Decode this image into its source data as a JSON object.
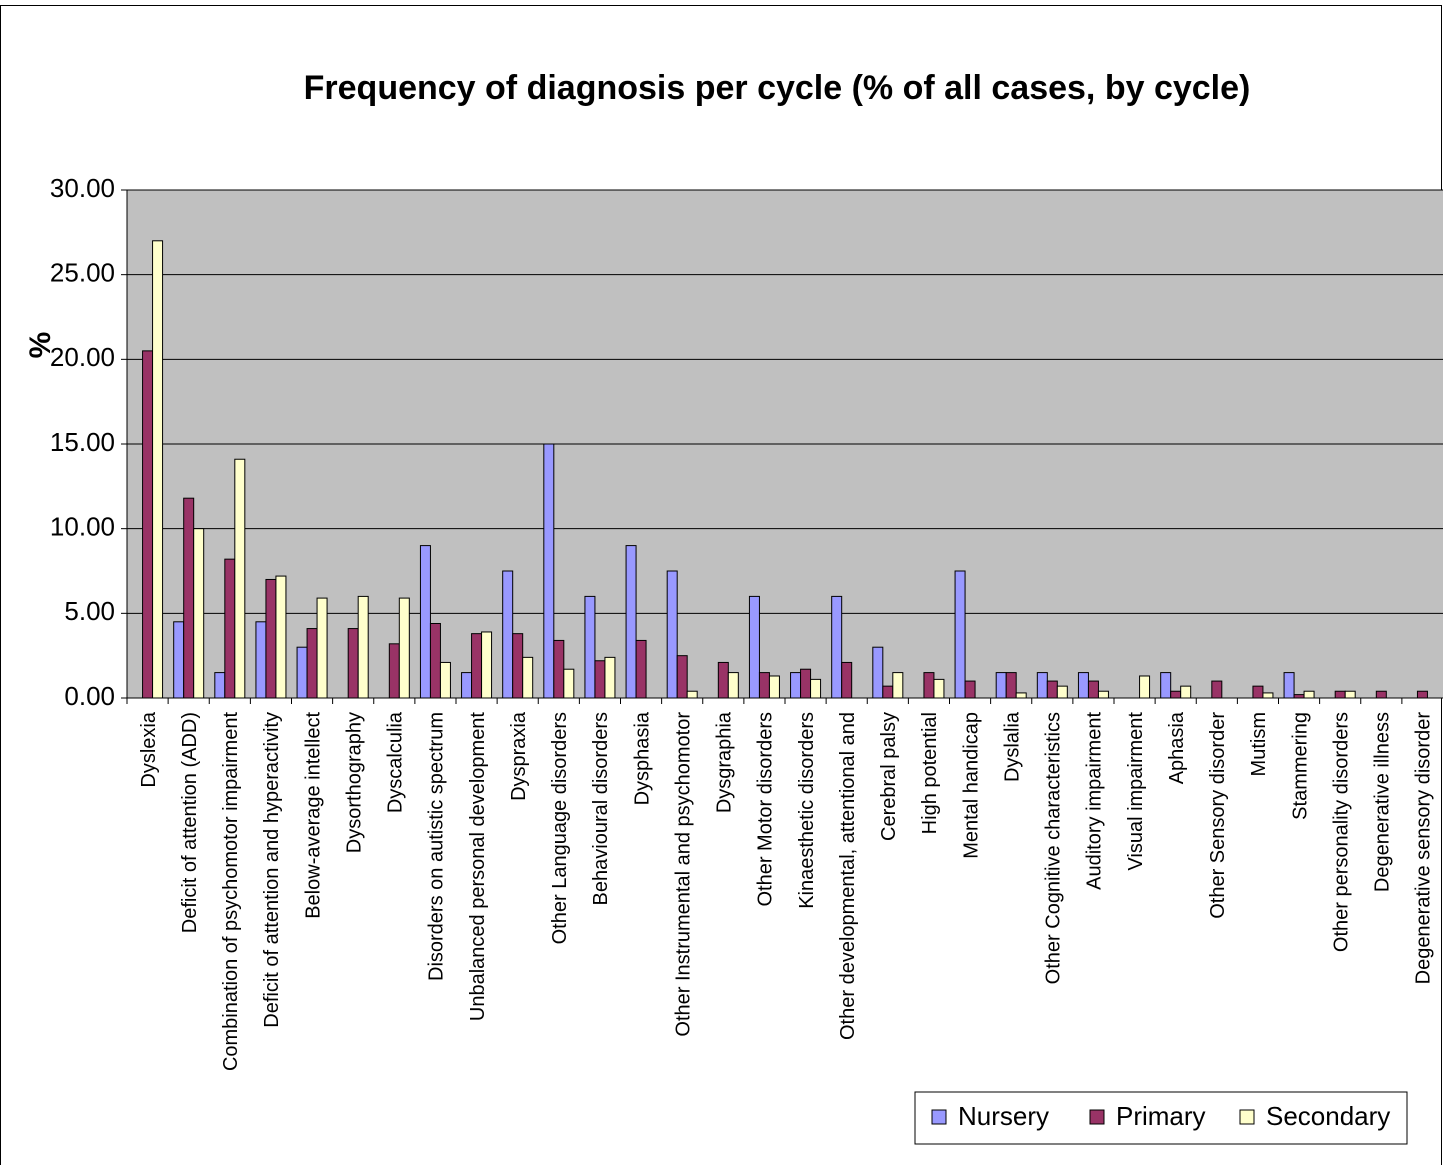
{
  "chart_data": {
    "type": "bar",
    "title": "Frequency of diagnosis per cycle (% of all cases, by cycle)",
    "y_label": "%",
    "categories": [
      "Dyslexia",
      "Deficit of attention (ADD)",
      "Combination of psychomotor impairment",
      "Deficit of attention and hyperactivity",
      "Below-average intellect",
      "Dysorthography",
      "Dyscalculia",
      "Disorders on autistic spectrum",
      "Unbalanced personal development",
      "Dyspraxia",
      "Other Language disorders",
      "Behavioural disorders",
      "Dysphasia",
      "Other Instrumental and psychomotor",
      "Dysgraphia",
      "Other Motor disorders",
      "Kinaesthetic disorders",
      "Other developmental, attentional and",
      "Cerebral palsy",
      "High potential",
      "Mental handicap",
      "Dyslalia",
      "Other Cognitive characteristics",
      "Auditory impairment",
      "Visual impairment",
      "Aphasia",
      "Other Sensory disorder",
      "Mutism",
      "Stammering",
      "Other personality disorders",
      "Degenerative illness",
      "Degenerative sensory disorder"
    ],
    "series": [
      {
        "name": "Nursery",
        "color": "#9999ff",
        "values": [
          0,
          4.5,
          1.5,
          4.5,
          3.0,
          0,
          0,
          9.0,
          1.5,
          7.5,
          15.0,
          6.0,
          9.0,
          7.5,
          0,
          6.0,
          1.5,
          6.0,
          3.0,
          0,
          7.5,
          1.5,
          1.5,
          1.5,
          0,
          1.5,
          0,
          0,
          1.5,
          0,
          0,
          0
        ]
      },
      {
        "name": "Primary",
        "color": "#993366",
        "values": [
          20.5,
          11.8,
          8.2,
          7.0,
          4.1,
          4.1,
          3.2,
          4.4,
          3.8,
          3.8,
          3.4,
          2.2,
          3.4,
          2.5,
          2.1,
          1.5,
          1.7,
          2.1,
          0.7,
          1.5,
          1.0,
          1.5,
          1.0,
          1.0,
          0,
          0.4,
          1.0,
          0.7,
          0.2,
          0.4,
          0.4,
          0.4
        ]
      },
      {
        "name": "Secondary",
        "color": "#ffffcc",
        "values": [
          27.0,
          10.0,
          14.1,
          7.2,
          5.9,
          6.0,
          5.9,
          2.1,
          3.9,
          2.4,
          1.7,
          2.4,
          0,
          0.4,
          1.5,
          1.3,
          1.1,
          0,
          1.5,
          1.1,
          0,
          0.3,
          0.7,
          0.4,
          1.3,
          0.7,
          0,
          0.3,
          0.4,
          0.4,
          0,
          0
        ]
      }
    ],
    "ylim": [
      0,
      30
    ],
    "yticks": [
      {
        "value": 0,
        "label": "0.00"
      },
      {
        "value": 5,
        "label": "5.00"
      },
      {
        "value": 10,
        "label": "10.00"
      },
      {
        "value": 15,
        "label": "15.00"
      },
      {
        "value": 20,
        "label": "20.00"
      },
      {
        "value": 25,
        "label": "25.00"
      },
      {
        "value": 30,
        "label": "30.00"
      }
    ],
    "grid": true,
    "legend": "bottom-right",
    "plot_background": "#c0c0c0"
  }
}
